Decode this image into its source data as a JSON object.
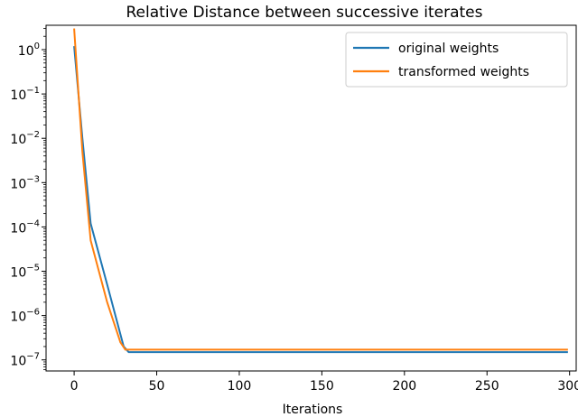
{
  "chart_data": {
    "type": "line",
    "title": "Relative Distance between successive iterates",
    "xlabel": "Iterations",
    "ylabel": "",
    "xlim": [
      -17,
      304
    ],
    "ylim_log10": [
      -7.25,
      0.55
    ],
    "yscale": "log",
    "x_ticks": [
      0,
      50,
      100,
      150,
      200,
      250,
      300
    ],
    "y_ticks": [
      {
        "exp": 0,
        "base": "10",
        "sup": "0"
      },
      {
        "exp": -1,
        "base": "10",
        "sup": "−1"
      },
      {
        "exp": -2,
        "base": "10",
        "sup": "−2"
      },
      {
        "exp": -3,
        "base": "10",
        "sup": "−3"
      },
      {
        "exp": -4,
        "base": "10",
        "sup": "−4"
      },
      {
        "exp": -5,
        "base": "10",
        "sup": "−5"
      },
      {
        "exp": -6,
        "base": "10",
        "sup": "−6"
      },
      {
        "exp": -7,
        "base": "10",
        "sup": "−7"
      }
    ],
    "legend_position": "top-right",
    "grid": false,
    "series": [
      {
        "name": "original weights",
        "color": "#1f77b4",
        "points": [
          [
            0,
            1.2
          ],
          [
            5,
            0.01
          ],
          [
            10,
            0.00012
          ],
          [
            20,
            5e-06
          ],
          [
            30,
            2e-07
          ],
          [
            33,
            1.5e-07
          ],
          [
            50,
            1.5e-07
          ],
          [
            100,
            1.5e-07
          ],
          [
            150,
            1.5e-07
          ],
          [
            200,
            1.5e-07
          ],
          [
            250,
            1.5e-07
          ],
          [
            299,
            1.5e-07
          ]
        ]
      },
      {
        "name": "transformed weights",
        "color": "#ff7f0e",
        "points": [
          [
            0,
            3.0
          ],
          [
            5,
            0.005
          ],
          [
            10,
            5e-05
          ],
          [
            20,
            2e-06
          ],
          [
            28,
            2.5e-07
          ],
          [
            31,
            1.7e-07
          ],
          [
            50,
            1.7e-07
          ],
          [
            100,
            1.7e-07
          ],
          [
            150,
            1.7e-07
          ],
          [
            200,
            1.7e-07
          ],
          [
            250,
            1.7e-07
          ],
          [
            299,
            1.7e-07
          ]
        ]
      }
    ]
  }
}
